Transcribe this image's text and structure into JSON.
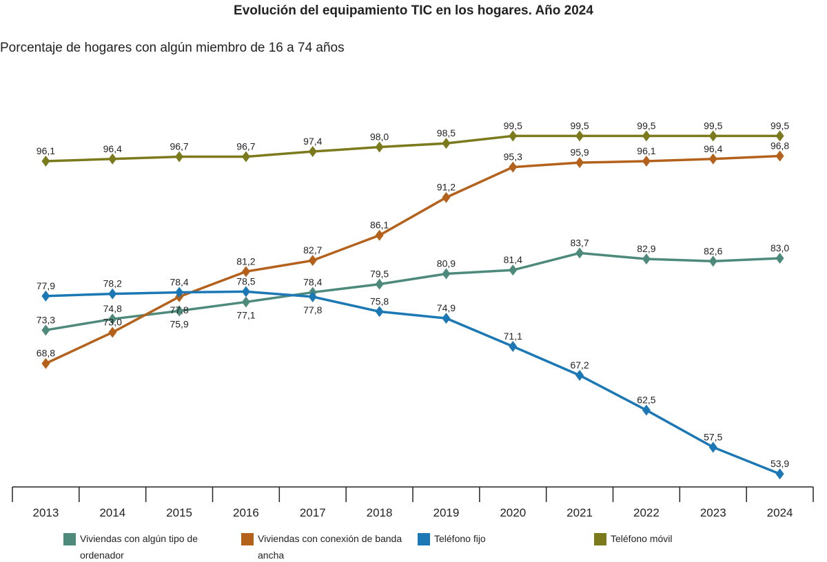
{
  "chart_data": {
    "type": "line",
    "title": "Evolución del equipamiento TIC en los hogares. Año 2024",
    "subtitle": "Porcentaje de hogares con algún miembro de 16 a 74 años",
    "xlabel": "",
    "ylabel": "",
    "categories": [
      "2013",
      "2014",
      "2015",
      "2016",
      "2017",
      "2018",
      "2019",
      "2020",
      "2021",
      "2022",
      "2023",
      "2024"
    ],
    "grid": false,
    "legend": "bottom",
    "marker": "diamond",
    "series": [
      {
        "name": "Viviendas con algún tipo de ordenador",
        "color": "#4e8a7c",
        "values": [
          73.3,
          74.8,
          75.9,
          77.1,
          78.4,
          79.5,
          80.9,
          81.4,
          83.7,
          82.9,
          82.6,
          83.0
        ]
      },
      {
        "name": "Viviendas con conexión de banda ancha",
        "color": "#b4611c",
        "values": [
          68.8,
          73.0,
          77.8,
          81.2,
          82.7,
          86.1,
          91.2,
          95.3,
          95.9,
          96.1,
          96.4,
          96.8
        ]
      },
      {
        "name": "Teléfono fijo",
        "color": "#1b78b4",
        "values": [
          77.9,
          78.2,
          78.4,
          78.5,
          77.8,
          75.8,
          74.9,
          71.1,
          67.2,
          62.5,
          57.5,
          53.9
        ]
      },
      {
        "name": "Teléfono móvil",
        "color": "#7b7a1c",
        "values": [
          96.1,
          96.4,
          96.7,
          96.7,
          97.4,
          98.0,
          98.5,
          99.5,
          99.5,
          99.5,
          99.5,
          99.5
        ]
      }
    ]
  }
}
